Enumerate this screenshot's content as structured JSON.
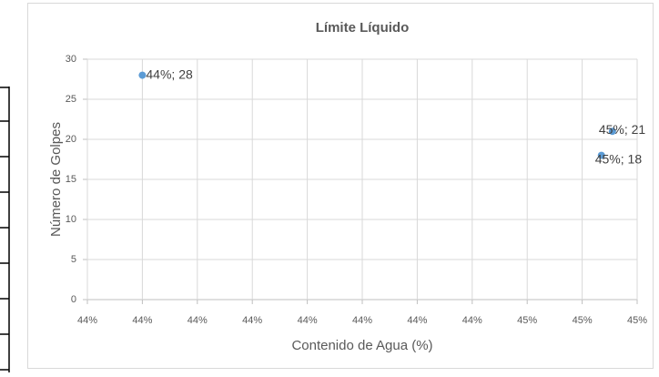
{
  "chart_data": {
    "type": "scatter",
    "title": "Límite Líquido",
    "x_label": "Contenido de Agua (%)",
    "y_label": "Número de Golpes",
    "x": [
      43.8,
      44.655,
      44.635
    ],
    "values": [
      28,
      21,
      18
    ],
    "value_labels": [
      "44%; 28",
      "45%; 21",
      "45%; 18"
    ],
    "color": "#5b9bd5",
    "xlim": [
      43.7,
      44.7
    ],
    "xticks": [
      {
        "value": 43.7,
        "label": "44%"
      },
      {
        "value": 43.8,
        "label": "44%"
      },
      {
        "value": 43.9,
        "label": "44%"
      },
      {
        "value": 44.0,
        "label": "44%"
      },
      {
        "value": 44.1,
        "label": "44%"
      },
      {
        "value": 44.2,
        "label": "44%"
      },
      {
        "value": 44.3,
        "label": "44%"
      },
      {
        "value": 44.4,
        "label": "44%"
      },
      {
        "value": 44.5,
        "label": "45%"
      },
      {
        "value": 44.6,
        "label": "45%"
      },
      {
        "value": 44.7,
        "label": "45%"
      }
    ],
    "ylim": [
      0,
      30
    ],
    "yticks": [
      0,
      5,
      10,
      15,
      20,
      25,
      30
    ],
    "grid": true
  }
}
